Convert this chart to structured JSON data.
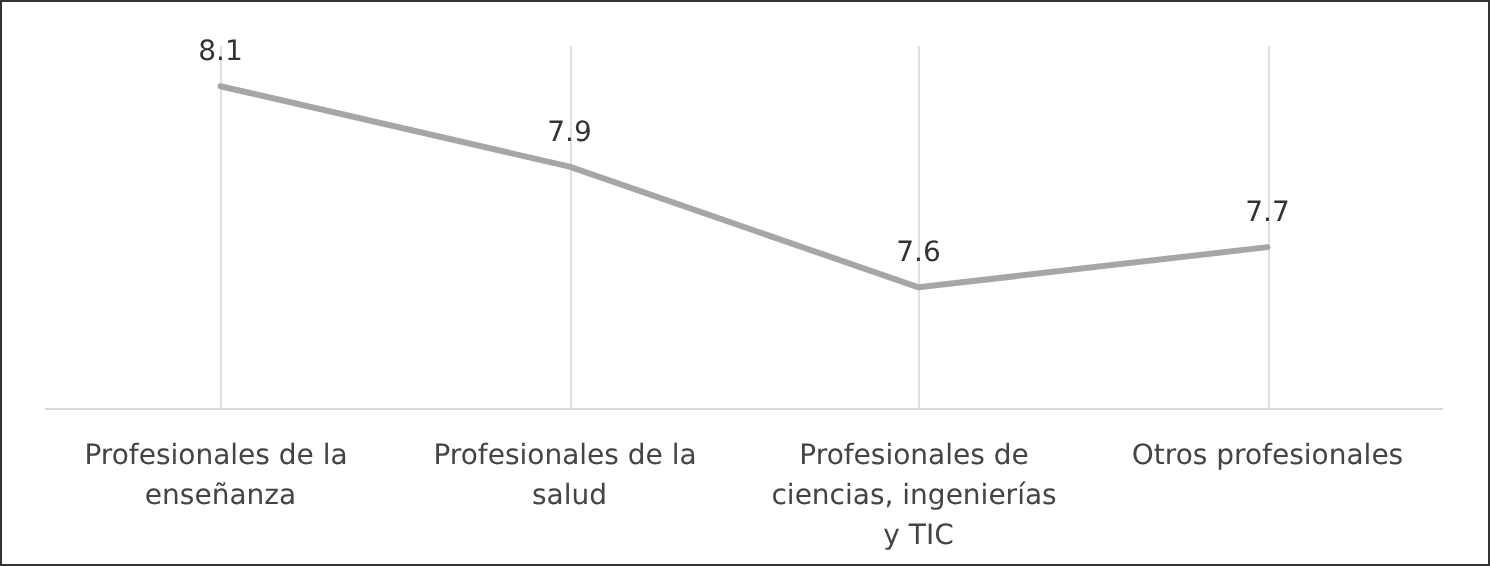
{
  "chart_data": {
    "type": "line",
    "categories": [
      "Profesionales de la enseñanza",
      "Profesionales de la salud",
      "Profesionales de ciencias, ingenierías y TIC",
      "Otros profesionales"
    ],
    "series": [
      {
        "color": "#a6a6a6",
        "values": [
          8.1,
          7.9,
          7.6,
          7.7
        ]
      }
    ],
    "ylim": [
      7.3,
      8.2
    ],
    "data_labels": true,
    "grid": "x",
    "marker": "none",
    "line_style": "solid",
    "tick_labels": "x"
  }
}
